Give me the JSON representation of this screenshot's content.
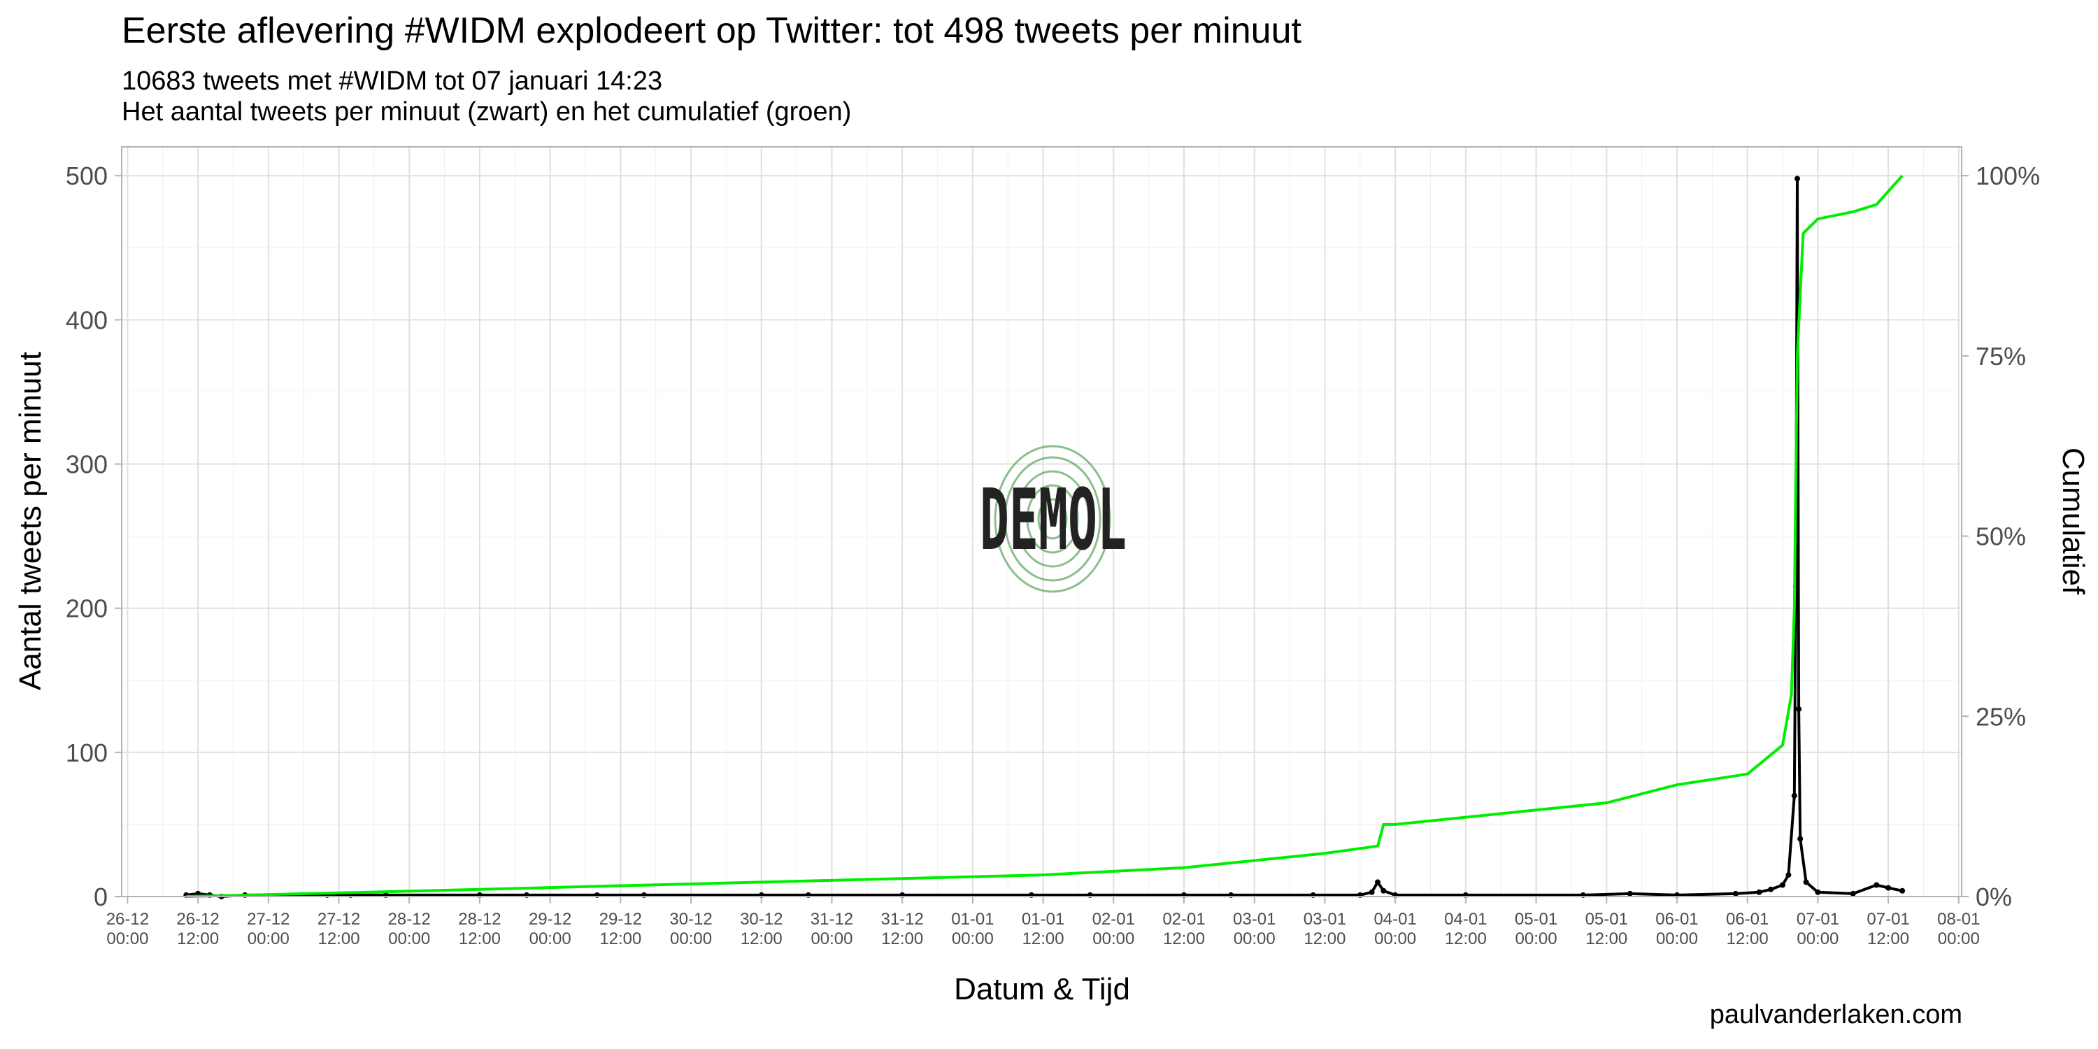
{
  "chart_data": {
    "type": "line",
    "title": "Eerste aflevering #WIDM explodeert op Twitter: tot 498 tweets per minuut",
    "subtitle": "10683 tweets met #WIDM tot 07 januari 14:23",
    "subtitle2": "Het aantal tweets per minuut (zwart) en het cumulatief (groen)",
    "xlabel": "Datum & Tijd",
    "ylabel": "Aantal tweets per minuut",
    "ylabel_right": "Cumulatief",
    "caption": "paulvanderlaken.com",
    "watermark": "DEMOL",
    "grid": true,
    "legend": "none",
    "colors": {
      "per_minute": "#000000",
      "cumulative": "#00ee00",
      "grid": "#e0e0e0",
      "panel_border": "#b3b3b3",
      "tick_text": "#4d4d4d"
    },
    "ylim": [
      0,
      520
    ],
    "y_ticks": [
      0,
      100,
      200,
      300,
      400,
      500
    ],
    "y2_ticks": [
      "0%",
      "25%",
      "50%",
      "75%",
      "100%"
    ],
    "x_start": "2017-12-26 00:00",
    "xlim": [
      "2017-12-25 23:00",
      "2018-01-08 00:30"
    ],
    "x_ticks": [
      {
        "top": "26-12",
        "bottom": "00:00"
      },
      {
        "top": "26-12",
        "bottom": "12:00"
      },
      {
        "top": "27-12",
        "bottom": "00:00"
      },
      {
        "top": "27-12",
        "bottom": "12:00"
      },
      {
        "top": "28-12",
        "bottom": "00:00"
      },
      {
        "top": "28-12",
        "bottom": "12:00"
      },
      {
        "top": "29-12",
        "bottom": "00:00"
      },
      {
        "top": "29-12",
        "bottom": "12:00"
      },
      {
        "top": "30-12",
        "bottom": "00:00"
      },
      {
        "top": "30-12",
        "bottom": "12:00"
      },
      {
        "top": "31-12",
        "bottom": "00:00"
      },
      {
        "top": "31-12",
        "bottom": "12:00"
      },
      {
        "top": "01-01",
        "bottom": "00:00"
      },
      {
        "top": "01-01",
        "bottom": "12:00"
      },
      {
        "top": "02-01",
        "bottom": "00:00"
      },
      {
        "top": "02-01",
        "bottom": "12:00"
      },
      {
        "top": "03-01",
        "bottom": "00:00"
      },
      {
        "top": "03-01",
        "bottom": "12:00"
      },
      {
        "top": "04-01",
        "bottom": "00:00"
      },
      {
        "top": "04-01",
        "bottom": "12:00"
      },
      {
        "top": "05-01",
        "bottom": "00:00"
      },
      {
        "top": "05-01",
        "bottom": "12:00"
      },
      {
        "top": "06-01",
        "bottom": "00:00"
      },
      {
        "top": "06-01",
        "bottom": "12:00"
      },
      {
        "top": "07-01",
        "bottom": "00:00"
      },
      {
        "top": "07-01",
        "bottom": "12:00"
      },
      {
        "top": "08-01",
        "bottom": "00:00"
      }
    ],
    "series": [
      {
        "points": [
          [
            "2017-12-26 10:00",
            1
          ],
          [
            "2017-12-26 12:00",
            2
          ],
          [
            "2017-12-26 14:00",
            1
          ],
          [
            "2017-12-26 16:00",
            0
          ],
          [
            "2017-12-26 20:00",
            1
          ],
          [
            "2017-12-27 10:00",
            1
          ],
          [
            "2017-12-27 14:00",
            1
          ],
          [
            "2017-12-27 20:00",
            1
          ],
          [
            "2017-12-28 12:00",
            1
          ],
          [
            "2017-12-28 20:00",
            1
          ],
          [
            "2017-12-29 08:00",
            1
          ],
          [
            "2017-12-29 16:00",
            1
          ],
          [
            "2017-12-30 12:00",
            1
          ],
          [
            "2017-12-30 20:00",
            1
          ],
          [
            "2017-12-31 12:00",
            1
          ],
          [
            "2018-01-01 10:00",
            1
          ],
          [
            "2018-01-01 20:00",
            1
          ],
          [
            "2018-01-02 12:00",
            1
          ],
          [
            "2018-01-02 20:00",
            1
          ],
          [
            "2018-01-03 10:00",
            1
          ],
          [
            "2018-01-03 18:00",
            1
          ],
          [
            "2018-01-03 20:00",
            3
          ],
          [
            "2018-01-03 21:00",
            10
          ],
          [
            "2018-01-03 22:00",
            4
          ],
          [
            "2018-01-04 00:00",
            1
          ],
          [
            "2018-01-04 12:00",
            1
          ],
          [
            "2018-01-05 08:00",
            1
          ],
          [
            "2018-01-05 16:00",
            2
          ],
          [
            "2018-01-06 00:00",
            1
          ],
          [
            "2018-01-06 10:00",
            2
          ],
          [
            "2018-01-06 14:00",
            3
          ],
          [
            "2018-01-06 16:00",
            5
          ],
          [
            "2018-01-06 18:00",
            8
          ],
          [
            "2018-01-06 19:00",
            15
          ],
          [
            "2018-01-06 20:00",
            70
          ],
          [
            "2018-01-06 20:15",
            215
          ],
          [
            "2018-01-06 20:30",
            498
          ],
          [
            "2018-01-06 20:45",
            130
          ],
          [
            "2018-01-06 21:00",
            40
          ],
          [
            "2018-01-06 22:00",
            10
          ],
          [
            "2018-01-07 00:00",
            3
          ],
          [
            "2018-01-07 06:00",
            2
          ],
          [
            "2018-01-07 10:00",
            8
          ],
          [
            "2018-01-07 12:00",
            6
          ],
          [
            "2018-01-07 14:23",
            4
          ]
        ]
      },
      {
        "percent": true,
        "points": [
          [
            "2017-12-26 10:00",
            0.0
          ],
          [
            "2017-12-27 12:00",
            0.5
          ],
          [
            "2017-12-28 12:00",
            1
          ],
          [
            "2017-12-29 12:00",
            1.5
          ],
          [
            "2017-12-30 12:00",
            2
          ],
          [
            "2017-12-31 12:00",
            2.5
          ],
          [
            "2018-01-01 12:00",
            3
          ],
          [
            "2018-01-02 00:00",
            3.5
          ],
          [
            "2018-01-02 12:00",
            4
          ],
          [
            "2018-01-03 00:00",
            5
          ],
          [
            "2018-01-03 12:00",
            6
          ],
          [
            "2018-01-03 21:00",
            7
          ],
          [
            "2018-01-03 22:00",
            10
          ],
          [
            "2018-01-04 00:00",
            10
          ],
          [
            "2018-01-04 12:00",
            11
          ],
          [
            "2018-01-05 00:00",
            12
          ],
          [
            "2018-01-05 12:00",
            13
          ],
          [
            "2018-01-06 00:00",
            15.5
          ],
          [
            "2018-01-06 12:00",
            17
          ],
          [
            "2018-01-06 18:00",
            21
          ],
          [
            "2018-01-06 19:30",
            28
          ],
          [
            "2018-01-06 20:00",
            40
          ],
          [
            "2018-01-06 20:30",
            75
          ],
          [
            "2018-01-06 21:30",
            92
          ],
          [
            "2018-01-07 00:00",
            94
          ],
          [
            "2018-01-07 06:00",
            95
          ],
          [
            "2018-01-07 10:00",
            96
          ],
          [
            "2018-01-07 14:23",
            100
          ]
        ]
      }
    ]
  }
}
